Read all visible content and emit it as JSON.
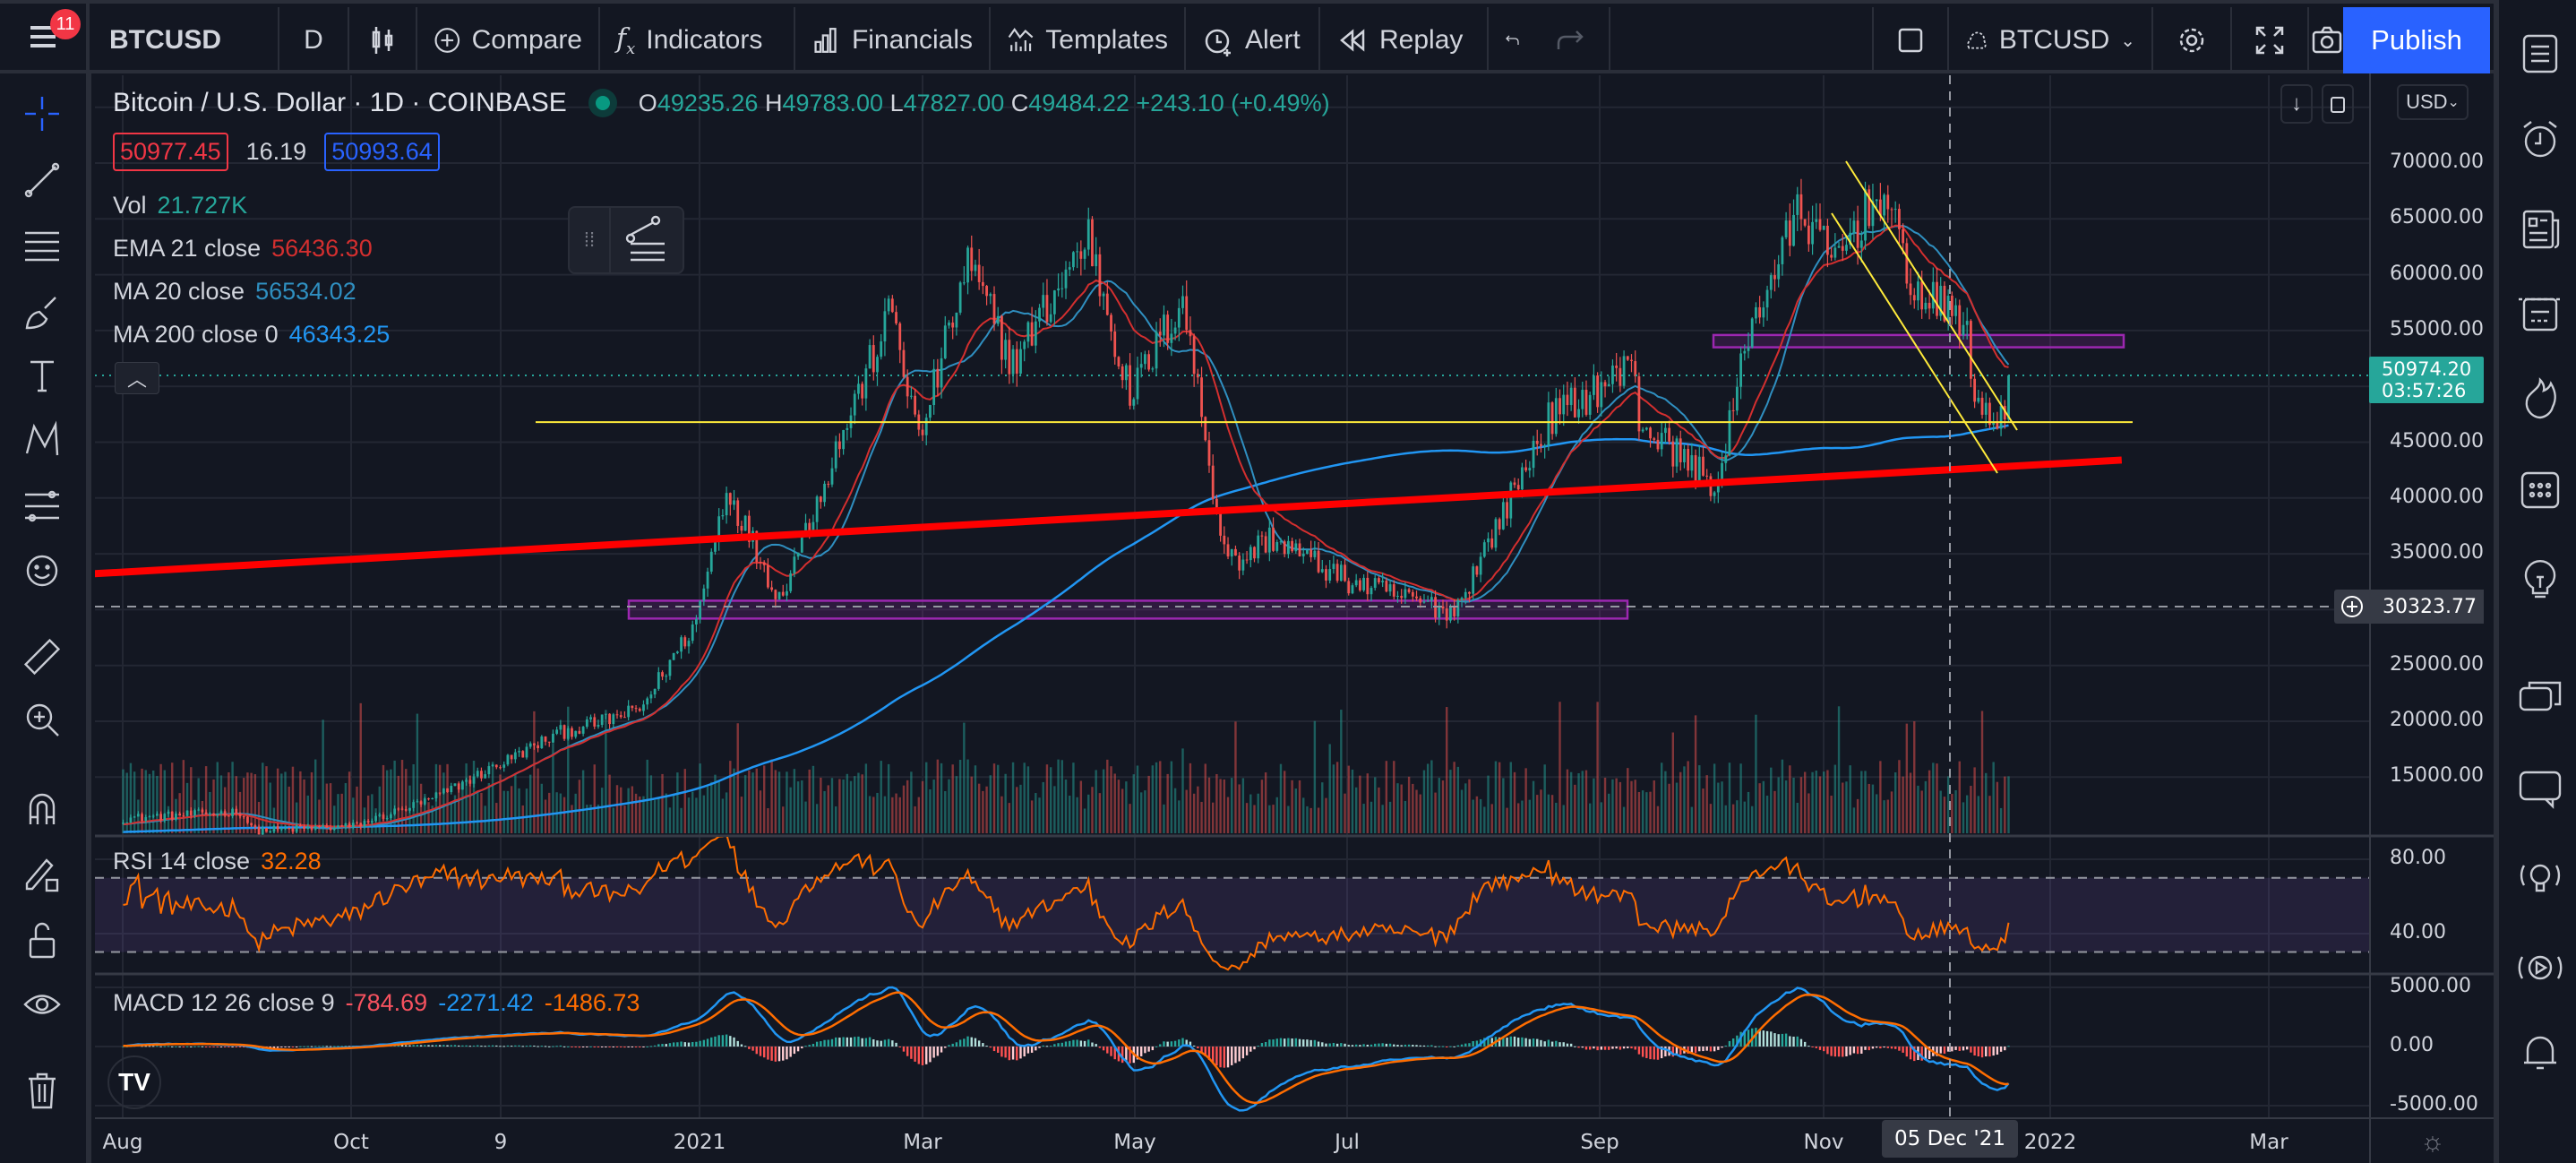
{
  "toolbar": {
    "notification_count": "11",
    "symbol": "BTCUSD",
    "interval": "D",
    "compare": "Compare",
    "indicators": "Indicators",
    "financials": "Financials",
    "templates": "Templates",
    "alert": "Alert",
    "replay": "Replay",
    "layout_symbol": "BTCUSD",
    "publish": "Publish"
  },
  "legend": {
    "title": "Bitcoin / U.S. Dollar · 1D · COINBASE",
    "o_label": "O",
    "o": "49235.26",
    "h_label": "H",
    "h": "49783.00",
    "l_label": "L",
    "l": "47827.00",
    "c_label": "C",
    "c": "49484.22",
    "change": "+243.10 (+0.49%)",
    "bid": "50977.45",
    "spread": "16.19",
    "ask": "50993.64",
    "vol_label": "Vol",
    "vol": "21.727K",
    "ema_label": "EMA 21 close",
    "ema": "56436.30",
    "ma20_label": "MA 20 close",
    "ma20": "56534.02",
    "ma200_label": "MA 200 close 0",
    "ma200": "46343.25"
  },
  "rsi": {
    "label": "RSI 14 close",
    "value": "32.28"
  },
  "macd": {
    "label": "MACD 12 26 close 9",
    "hist": "-784.69",
    "macd": "-2271.42",
    "signal": "-1486.73"
  },
  "price_axis": {
    "currency": "USD",
    "ticks": [
      70000,
      65000,
      60000,
      55000,
      45000,
      40000,
      35000,
      25000,
      20000,
      15000
    ],
    "tick_labels": [
      "70000.00",
      "65000.00",
      "60000.00",
      "55000.00",
      "45000.00",
      "40000.00",
      "35000.00",
      "25000.00",
      "20000.00",
      "15000.00"
    ],
    "last_price": "50974.20",
    "countdown": "03:57:26",
    "crosshair_price": "30323.77"
  },
  "rsi_axis": [
    "80.00",
    "40.00"
  ],
  "macd_axis": [
    "5000.00",
    "0.00",
    "-5000.00"
  ],
  "time_axis": {
    "labels": [
      "Aug",
      "Oct",
      "9",
      "2021",
      "Mar",
      "May",
      "Jul",
      "Sep",
      "Nov",
      "2022",
      "Mar"
    ],
    "crosshair_date": "05 Dec '21"
  },
  "colors": {
    "up": "#26a69a",
    "down": "#ef5350",
    "ema": "#d32f2f",
    "ma20": "#2f8fc0",
    "ma200": "#2196f3",
    "rsi": "#ff6d00",
    "publish": "#2962ff"
  },
  "chart_data": {
    "type": "candlestick",
    "start_date": "2020-08-01",
    "close_keypoints_day_price": [
      [
        0,
        11300
      ],
      [
        31,
        11900
      ],
      [
        35,
        10200
      ],
      [
        61,
        10600
      ],
      [
        81,
        12900
      ],
      [
        96,
        15500
      ],
      [
        116,
        19000
      ],
      [
        122,
        19500
      ],
      [
        137,
        21000
      ],
      [
        152,
        29000
      ],
      [
        160,
        41000
      ],
      [
        174,
        31000
      ],
      [
        191,
        46000
      ],
      [
        204,
        57000
      ],
      [
        211,
        45000
      ],
      [
        224,
        61000
      ],
      [
        236,
        52000
      ],
      [
        256,
        63500
      ],
      [
        267,
        49000
      ],
      [
        281,
        58000
      ],
      [
        291,
        37000
      ],
      [
        295,
        34000
      ],
      [
        304,
        36500
      ],
      [
        325,
        32500
      ],
      [
        353,
        29800
      ],
      [
        378,
        47000
      ],
      [
        401,
        52000
      ],
      [
        402,
        46800
      ],
      [
        423,
        41000
      ],
      [
        431,
        55000
      ],
      [
        445,
        66000
      ],
      [
        453,
        61000
      ],
      [
        466,
        67500
      ],
      [
        476,
        58000
      ],
      [
        489,
        56000
      ],
      [
        490,
        49000
      ],
      [
        499,
        46800
      ],
      [
        500,
        50974.2
      ]
    ],
    "y_range": [
      10000,
      75000
    ],
    "drawings": {
      "support_trendline_red": [
        [
          -72,
          32000
        ],
        [
          530,
          43400
        ]
      ],
      "horizontal_yellow": 46800,
      "zone_low": [
        30800,
        29200
      ],
      "zone_high": [
        54600,
        53500
      ]
    }
  }
}
